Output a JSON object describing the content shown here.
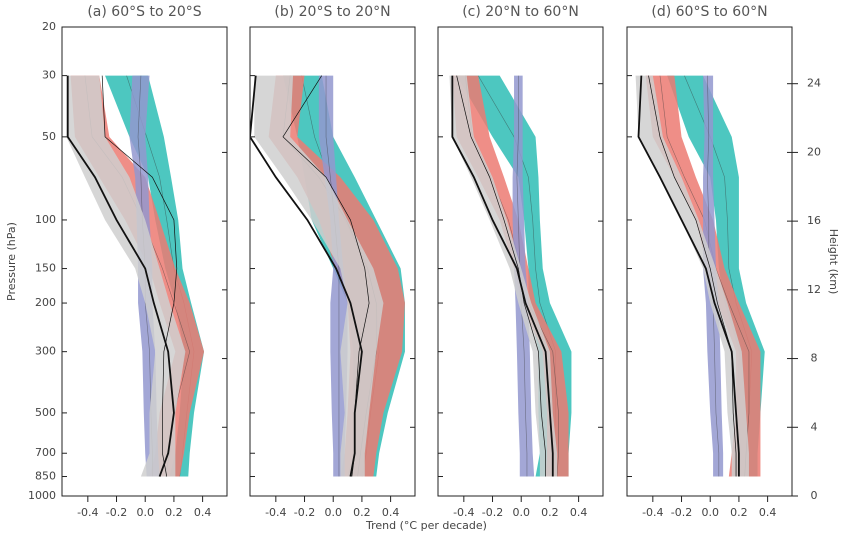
{
  "chart_data": [
    {
      "type": "profile",
      "title": "(a) 60°S to 20°S",
      "ylabel": "Pressure (hPa)",
      "y": [
        850,
        700,
        500,
        300,
        200,
        150,
        100,
        70,
        50,
        30
      ],
      "log_y": true,
      "ylim": [
        1000,
        20
      ],
      "yticks": [
        20,
        30,
        50,
        100,
        150,
        200,
        300,
        500,
        700,
        850,
        1000
      ],
      "xlim": [
        -0.58,
        0.57
      ],
      "xticks": [
        -0.4,
        -0.2,
        {
          "value": 0,
          "label": "0.0"
        },
        0.2,
        0.4
      ],
      "series": [
        {
          "color": "#2ebdb5",
          "values": [
            0.24,
            0.26,
            0.29,
            0.34,
            0.27,
            0.2,
            0.15,
            0.1,
            0.01,
            -0.13
          ],
          "lower": [
            0.17,
            0.21,
            0.24,
            0.27,
            0.21,
            0.14,
            0.07,
            0.02,
            -0.11,
            -0.28
          ],
          "upper": [
            0.3,
            0.31,
            0.34,
            0.41,
            0.32,
            0.26,
            0.23,
            0.18,
            0.13,
            0.02
          ]
        },
        {
          "color": "#ec7a72",
          "values": [
            0.14,
            0.17,
            0.2,
            0.31,
            0.2,
            0.12,
            -0.02,
            -0.16,
            -0.37,
            -0.42
          ],
          "lower": [
            0.03,
            0.07,
            0.1,
            0.21,
            0.1,
            0.03,
            -0.14,
            -0.32,
            -0.49,
            -0.52
          ],
          "upper": [
            0.24,
            0.27,
            0.31,
            0.41,
            0.31,
            0.21,
            0.1,
            0.0,
            -0.25,
            -0.32
          ]
        },
        {
          "color": "#9398cf",
          "values": [
            0.05,
            0.05,
            0.04,
            0.03,
            0,
            0,
            -0.02,
            -0.03,
            -0.05,
            -0.03
          ],
          "lower": [
            0.01,
            0.0,
            -0.01,
            -0.02,
            -0.05,
            -0.05,
            -0.06,
            -0.07,
            -0.11,
            -0.09
          ],
          "upper": [
            0.1,
            0.09,
            0.08,
            0.07,
            0.05,
            0.05,
            0.03,
            0.02,
            0,
            0.03
          ]
        },
        {
          "color": "#cfcfcf",
          "lower": [
            -0.03,
            0.03,
            0.03,
            0.07,
            0,
            -0.07,
            -0.28,
            -0.42,
            -0.55,
            -0.55
          ],
          "upper": [
            0.21,
            0.21,
            0.21,
            0.28,
            0.17,
            0.1,
            0,
            -0.11,
            -0.28,
            -0.32
          ]
        },
        {
          "color": "#111111",
          "line_width": 1.8,
          "values": [
            0.1,
            0.16,
            0.2,
            0.16,
            0.06,
            0.0,
            -0.2,
            -0.35,
            -0.54,
            -0.54
          ]
        },
        {
          "color": "#111111",
          "line_width": 0.7,
          "values": [
            0.15,
            0.12,
            0.12,
            0.13,
            0.2,
            0.22,
            0.2,
            0.05,
            -0.28,
            -0.3
          ]
        }
      ]
    },
    {
      "type": "profile",
      "title": "(b) 20°S to 20°N",
      "xlabel": "Trend (°C per decade)",
      "y": [
        850,
        700,
        500,
        300,
        200,
        150,
        100,
        70,
        50,
        30
      ],
      "log_y": true,
      "ylim": [
        1000,
        20
      ],
      "xlim": [
        -0.58,
        0.57
      ],
      "xticks": [
        -0.4,
        -0.2,
        {
          "value": 0,
          "label": "0.0"
        },
        0.2,
        0.4
      ],
      "series": [
        {
          "color": "#2ebdb5",
          "values": [
            0.2,
            0.23,
            0.26,
            0.32,
            0.3,
            0.24,
            0.08,
            -0.03,
            -0.13,
            -0.22
          ],
          "lower": [
            0.1,
            0.14,
            0.14,
            0.14,
            0.1,
            0.0,
            -0.15,
            -0.2,
            -0.25,
            -0.35
          ],
          "upper": [
            0.3,
            0.32,
            0.38,
            0.5,
            0.5,
            0.47,
            0.3,
            0.15,
            0.0,
            -0.08
          ]
        },
        {
          "color": "#ec7a72",
          "values": [
            0.17,
            0.19,
            0.23,
            0.3,
            0.3,
            0.24,
            0.09,
            -0.1,
            -0.35,
            -0.3
          ],
          "lower": [
            0.05,
            0.08,
            0.1,
            0.12,
            0.1,
            0.02,
            -0.1,
            -0.25,
            -0.45,
            -0.4
          ],
          "upper": [
            0.28,
            0.3,
            0.35,
            0.48,
            0.5,
            0.45,
            0.28,
            0.05,
            -0.25,
            -0.2
          ]
        },
        {
          "color": "#9398cf",
          "values": [
            0.04,
            0.04,
            0.04,
            0.04,
            0.04,
            0.04,
            0.01,
            -0.02,
            -0.05,
            -0.05
          ],
          "lower": [
            0.0,
            0.0,
            -0.01,
            -0.02,
            -0.02,
            0.0,
            -0.02,
            -0.06,
            -0.1,
            -0.1
          ],
          "upper": [
            0.08,
            0.08,
            0.09,
            0.1,
            0.1,
            0.07,
            0.04,
            0.02,
            0.0,
            0.0
          ]
        },
        {
          "color": "#cfcfcf",
          "lower": [
            0.05,
            0.05,
            0.08,
            0.05,
            0.1,
            0.05,
            -0.15,
            -0.35,
            -0.55,
            -0.55
          ],
          "upper": [
            0.22,
            0.22,
            0.25,
            0.3,
            0.35,
            0.28,
            0.1,
            -0.05,
            -0.3,
            -0.28
          ]
        },
        {
          "color": "#111111",
          "line_width": 1.8,
          "values": [
            0.12,
            0.15,
            0.15,
            0.2,
            0.12,
            0.02,
            -0.18,
            -0.4,
            -0.58,
            -0.54
          ]
        },
        {
          "color": "#111111",
          "line_width": 0.7,
          "values": [
            0.13,
            0.15,
            0.15,
            0.18,
            0.25,
            0.22,
            0.12,
            -0.05,
            -0.35,
            -0.08
          ]
        }
      ]
    },
    {
      "type": "profile",
      "title": "(c) 20°N to 60°N",
      "y": [
        850,
        700,
        500,
        300,
        200,
        150,
        100,
        70,
        50,
        30
      ],
      "log_y": true,
      "ylim": [
        1000,
        20
      ],
      "xlim": [
        -0.58,
        0.57
      ],
      "xticks": [
        -0.4,
        -0.2,
        {
          "value": 0,
          "label": "0.0"
        },
        0.2,
        0.4
      ],
      "series": [
        {
          "color": "#2ebdb5",
          "values": [
            0.22,
            0.23,
            0.24,
            0.24,
            0.13,
            0.1,
            0.08,
            0.05,
            -0.05,
            -0.3
          ],
          "lower": [
            0.1,
            0.13,
            0.12,
            0.12,
            0.05,
            0.05,
            0.02,
            -0.02,
            -0.2,
            -0.45
          ],
          "upper": [
            0.33,
            0.33,
            0.35,
            0.35,
            0.2,
            0.15,
            0.13,
            0.12,
            0.1,
            -0.15
          ]
        },
        {
          "color": "#ec7a72",
          "values": [
            0.25,
            0.26,
            0.26,
            0.22,
            0.05,
            0,
            -0.09,
            -0.21,
            -0.34,
            -0.39
          ],
          "lower": [
            0.17,
            0.18,
            0.18,
            0.15,
            0.0,
            -0.05,
            -0.15,
            -0.3,
            -0.45,
            -0.48
          ],
          "upper": [
            0.33,
            0.33,
            0.33,
            0.28,
            0.1,
            0.05,
            -0.02,
            -0.12,
            -0.22,
            -0.3
          ]
        },
        {
          "color": "#9398cf",
          "values": [
            0.04,
            0.04,
            0.03,
            0.02,
            0,
            -0.01,
            -0.02,
            -0.03,
            -0.02,
            -0.02
          ],
          "lower": [
            -0.01,
            -0.01,
            -0.02,
            -0.03,
            -0.04,
            -0.05,
            -0.06,
            -0.06,
            -0.05,
            -0.05
          ],
          "upper": [
            0.09,
            0.08,
            0.07,
            0.06,
            0.05,
            0.03,
            0.02,
            0.01,
            0.01,
            0.01
          ]
        },
        {
          "color": "#cfcfcf",
          "lower": [
            0.13,
            0.13,
            0.1,
            0.08,
            -0.02,
            -0.08,
            -0.22,
            -0.35,
            -0.48,
            -0.5
          ],
          "upper": [
            0.25,
            0.25,
            0.22,
            0.2,
            0.07,
            0.0,
            -0.1,
            -0.2,
            -0.33,
            -0.38
          ]
        },
        {
          "color": "#111111",
          "line_width": 1.8,
          "values": [
            0.22,
            0.22,
            0.2,
            0.17,
            0.03,
            -0.03,
            -0.2,
            -0.33,
            -0.48,
            -0.48
          ]
        },
        {
          "color": "#111111",
          "line_width": 0.7,
          "values": [
            0.17,
            0.17,
            0.14,
            0.12,
            0.02,
            -0.02,
            -0.12,
            -0.22,
            -0.35,
            -0.45
          ]
        }
      ]
    },
    {
      "type": "profile",
      "title": "(d) 60°S to 60°N",
      "y2label": "Height (km)",
      "y": [
        850,
        700,
        500,
        300,
        200,
        150,
        100,
        70,
        50,
        30
      ],
      "log_y": true,
      "ylim": [
        1000,
        20
      ],
      "y2lim": [
        0,
        27.3
      ],
      "y2ticks": [
        0,
        4,
        8,
        12,
        16,
        20,
        24
      ],
      "xlim": [
        -0.58,
        0.57
      ],
      "xticks": [
        -0.4,
        -0.2,
        {
          "value": 0,
          "label": "0.0"
        },
        0.2,
        0.4
      ],
      "series": [
        {
          "color": "#2ebdb5",
          "values": [
            0.24,
            0.25,
            0.27,
            0.29,
            0.18,
            0.13,
            0.12,
            0.1,
            0,
            -0.18
          ],
          "lower": [
            0.15,
            0.17,
            0.18,
            0.2,
            0.1,
            0.06,
            0.04,
            0.0,
            -0.15,
            -0.3
          ],
          "upper": [
            0.33,
            0.33,
            0.35,
            0.38,
            0.25,
            0.2,
            0.2,
            0.2,
            0.15,
            -0.05
          ]
        },
        {
          "color": "#ec7a72",
          "values": [
            0.24,
            0.25,
            0.27,
            0.27,
            0.13,
            0.04,
            -0.04,
            -0.18,
            -0.3,
            -0.35
          ],
          "lower": [
            0.13,
            0.15,
            0.18,
            0.18,
            0.05,
            -0.02,
            -0.1,
            -0.25,
            -0.4,
            -0.45
          ],
          "upper": [
            0.35,
            0.35,
            0.35,
            0.35,
            0.2,
            0.1,
            0.02,
            -0.1,
            -0.2,
            -0.25
          ]
        },
        {
          "color": "#9398cf",
          "values": [
            0.06,
            0.06,
            0.04,
            0.03,
            0.02,
            -0.01,
            -0.01,
            -0.02,
            -0.01,
            -0.02
          ],
          "lower": [
            0.02,
            0.02,
            0.0,
            -0.02,
            -0.03,
            -0.05,
            -0.05,
            -0.05,
            -0.04,
            -0.05
          ],
          "upper": [
            0.09,
            0.09,
            0.08,
            0.07,
            0.06,
            0.04,
            0.03,
            0.02,
            0.02,
            0.02
          ]
        },
        {
          "color": "#cfcfcf",
          "lower": [
            0.15,
            0.15,
            0.12,
            0.1,
            0.0,
            -0.05,
            -0.2,
            -0.35,
            -0.5,
            -0.52
          ],
          "upper": [
            0.27,
            0.27,
            0.25,
            0.22,
            0.12,
            0.04,
            -0.08,
            -0.2,
            -0.33,
            -0.4
          ]
        },
        {
          "color": "#111111",
          "line_width": 1.8,
          "values": [
            0.2,
            0.2,
            0.18,
            0.15,
            0.03,
            -0.03,
            -0.2,
            -0.35,
            -0.5,
            -0.48
          ]
        },
        {
          "color": "#111111",
          "line_width": 0.7,
          "values": [
            0.18,
            0.18,
            0.16,
            0.15,
            0.05,
            0.0,
            -0.1,
            -0.25,
            -0.35,
            -0.43
          ]
        }
      ]
    }
  ]
}
